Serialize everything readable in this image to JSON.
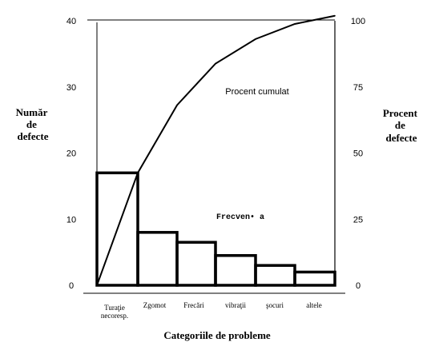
{
  "chart_data": {
    "type": "bar",
    "categories": [
      "Turaţie necoresp.",
      "Zgomot",
      "Frecări",
      "vibraţii",
      "şocuri",
      "altele"
    ],
    "series": [
      {
        "name": "",
        "values": [
          17,
          8,
          6.5,
          4.5,
          3,
          2
        ]
      },
      {
        "name": "Procent cumulat",
        "values": [
          42.5,
          68.1,
          83.8,
          93.1,
          98.8,
          101.9
        ]
      }
    ],
    "ylim": [
      0,
      40
    ],
    "y2lim": [
      0,
      100
    ],
    "yticks": [
      "0",
      "10",
      "20",
      "30",
      "40"
    ],
    "y2ticks": [
      "0",
      "25",
      "50",
      "75",
      "100"
    ],
    "ylabel": [
      "Număr",
      "de",
      "defecte"
    ],
    "y2label": [
      "Procent",
      "de",
      "defecte"
    ],
    "xlabel": "Categoriile de probleme",
    "annotations": [
      "Procent cumulat",
      "Frecven• a"
    ],
    "grid": false
  }
}
